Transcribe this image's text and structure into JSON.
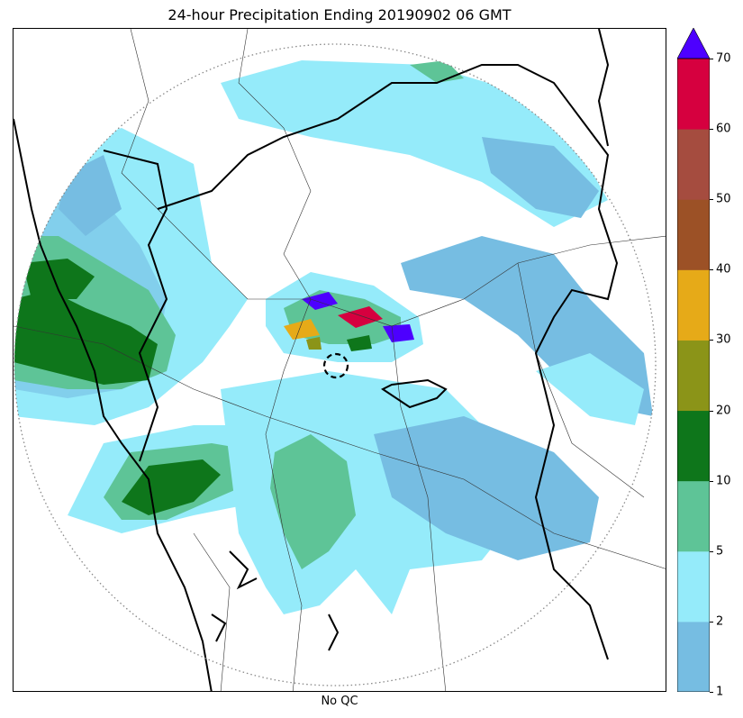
{
  "title": "24-hour Precipitation Ending 20190902 06 GMT",
  "footer_label": "No QC",
  "colorbar": {
    "ticks": [
      "1",
      "2",
      "5",
      "10",
      "20",
      "30",
      "40",
      "50",
      "60",
      "70"
    ],
    "colors": [
      "#76bde2",
      "#95ebfa",
      "#5ec497",
      "#0e761b",
      "#8b9418",
      "#e6aa18",
      "#9c5126",
      "#a54c3f",
      "#d6003f"
    ],
    "extend_max_color": "#4d00ff"
  },
  "map": {
    "radar_range_ring": "dotted",
    "radar_site_marker": "dashed-circle",
    "boundaries": [
      "country-borders",
      "state-borders",
      "coastline"
    ]
  }
}
